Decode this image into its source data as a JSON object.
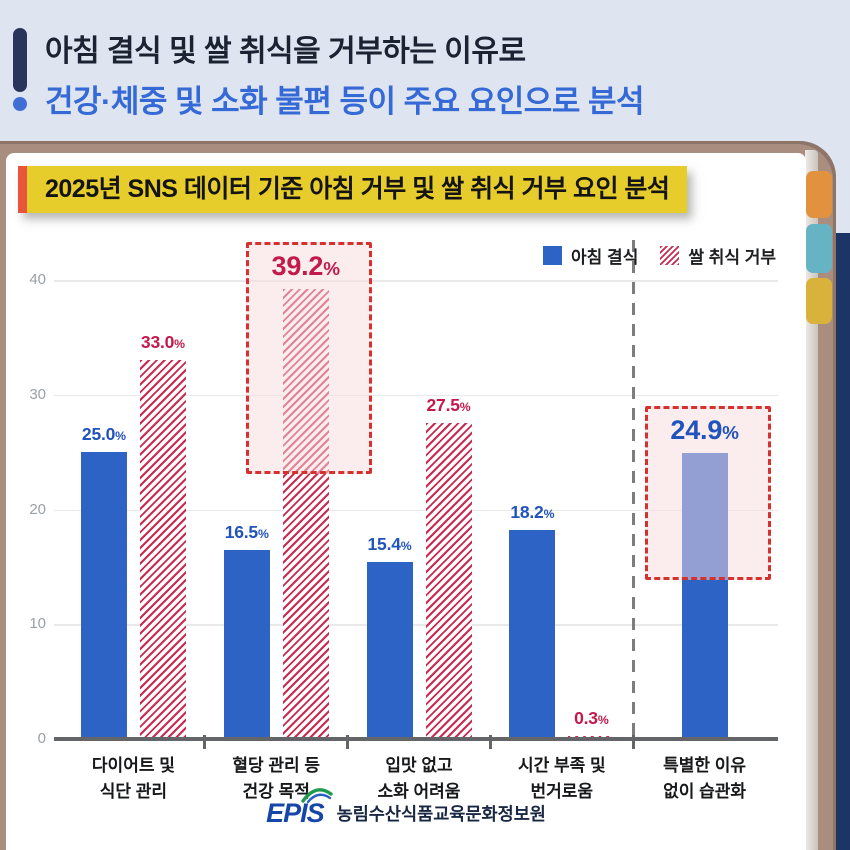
{
  "header": {
    "title_line1": "아침 결식 및 쌀 취식을 거부하는 이유로",
    "title_line2": "건강·체중 및 소화 불편 등이 주요 요인으로 분석"
  },
  "chart_data": {
    "type": "bar",
    "title": "2025년 SNS 데이터 기준 아침 거부 및 쌀 취식 거부 요인 분석",
    "unit": "%",
    "categories": [
      "다이어트 및\n식단 관리",
      "혈당 관리 등\n건강 목적",
      "입맛 없고\n소화 어려움",
      "시간 부족 및\n번거로움",
      "특별한 이유\n없이 습관화"
    ],
    "series": [
      {
        "name": "아침 결식",
        "pattern": "solid",
        "color": "#2e63c6",
        "label_color": "#2153bd",
        "values": [
          25.0,
          16.5,
          15.4,
          18.2,
          24.9
        ]
      },
      {
        "name": "쌀 취식 거부",
        "pattern": "hatch",
        "color": "#cb2a50",
        "label_color": "#c31a4c",
        "values": [
          33.0,
          39.2,
          27.5,
          0.3,
          null
        ]
      }
    ],
    "yticks": [
      0,
      10,
      20,
      30,
      40
    ],
    "ylim": [
      0,
      43
    ],
    "grid": true,
    "legend_position": "top-right",
    "separator_before_index": 4,
    "highlights": [
      {
        "category_index": 1,
        "series_index": 1,
        "box_color": "#d5322f"
      },
      {
        "category_index": 4,
        "series_index": 0,
        "box_color": "#d5322f"
      }
    ]
  },
  "footer": {
    "logo_text": "EPIS",
    "org_name": "농림수산식품교육문화정보원"
  }
}
